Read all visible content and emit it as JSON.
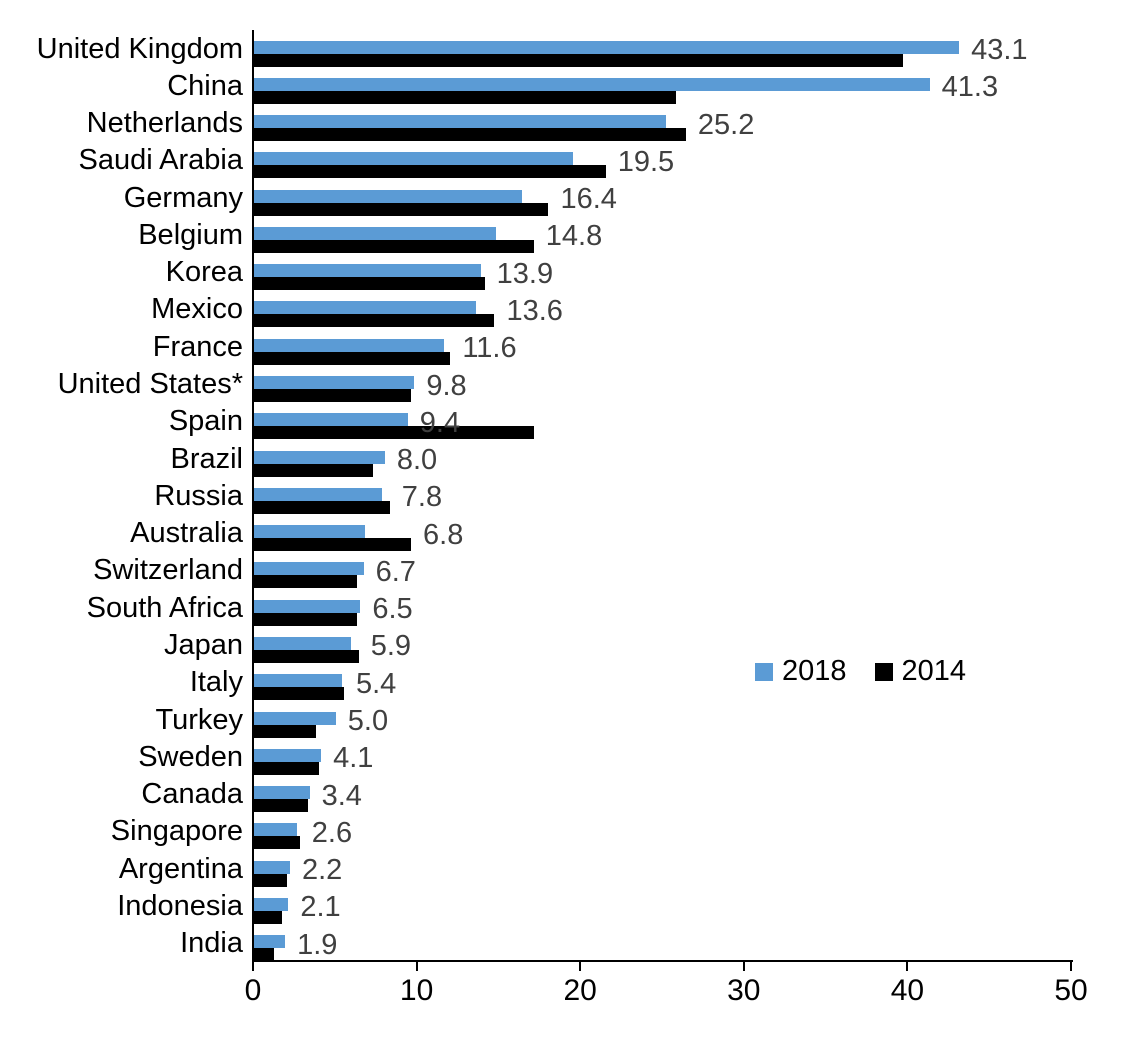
{
  "chart_data": {
    "type": "bar",
    "orientation": "horizontal",
    "title": "",
    "xlabel": "",
    "ylabel": "",
    "xlim": [
      0,
      50
    ],
    "x_ticks": [
      "0",
      "10",
      "20",
      "30",
      "40",
      "50"
    ],
    "grid": false,
    "legend_position": "middle-right",
    "categories": [
      "United Kingdom",
      "China",
      "Netherlands",
      "Saudi Arabia",
      "Germany",
      "Belgium",
      "Korea",
      "Mexico",
      "France",
      "United States*",
      "Spain",
      "Brazil",
      "Russia",
      "Australia",
      "Switzerland",
      "South Africa",
      "Japan",
      "Italy",
      "Turkey",
      "Sweden",
      "Canada",
      "Singapore",
      "Argentina",
      "Indonesia",
      "India"
    ],
    "series": [
      {
        "name": "2018",
        "color": "#5B9BD5",
        "values": [
          43.1,
          41.3,
          25.2,
          19.5,
          16.4,
          14.8,
          13.9,
          13.6,
          11.6,
          9.8,
          9.4,
          8.0,
          7.8,
          6.8,
          6.7,
          6.5,
          5.9,
          5.4,
          5.0,
          4.1,
          3.4,
          2.6,
          2.2,
          2.1,
          1.9
        ]
      },
      {
        "name": "2014",
        "color": "#000000",
        "values": [
          39.7,
          25.8,
          26.4,
          21.5,
          18.0,
          17.1,
          14.1,
          14.7,
          12.0,
          9.6,
          17.1,
          7.3,
          8.3,
          9.6,
          6.3,
          6.3,
          6.4,
          5.5,
          3.8,
          4.0,
          3.3,
          2.8,
          2.0,
          1.7,
          1.2
        ]
      }
    ],
    "value_labels": [
      "43.1",
      "41.3",
      "25.2",
      "19.5",
      "16.4",
      "14.8",
      "13.9",
      "13.6",
      "11.6",
      "9.8",
      "9.4",
      "8.0",
      "7.8",
      "6.8",
      "6.7",
      "6.5",
      "5.9",
      "5.4",
      "5.0",
      "4.1",
      "3.4",
      "2.6",
      "2.2",
      "2.1",
      "1.9"
    ],
    "value_label_series": "2018"
  },
  "legend": {
    "entries": [
      {
        "label": "2018",
        "color": "#5B9BD5"
      },
      {
        "label": "2014",
        "color": "#000000"
      }
    ]
  },
  "colors": {
    "bar_2018": "#5B9BD5",
    "bar_2014": "#000000",
    "value_label": "#404040",
    "axis": "#000000",
    "background": "#FFFFFF"
  }
}
